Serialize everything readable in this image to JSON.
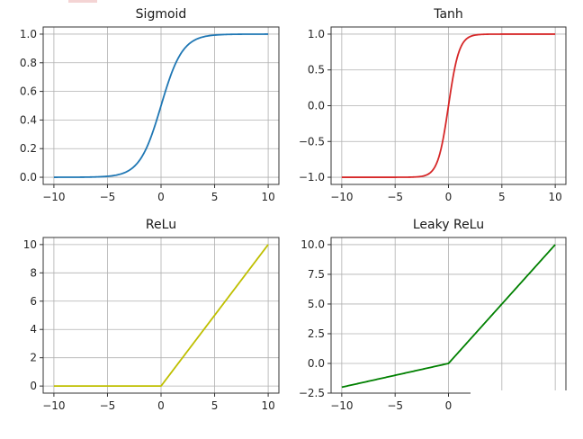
{
  "figure": {
    "layout": "2x2 subplot grid",
    "grid": true
  },
  "chart_data": [
    {
      "type": "line",
      "title": "Sigmoid",
      "color": "#1f77b4",
      "xlabel": "",
      "ylabel": "",
      "xlim": [
        -11,
        11
      ],
      "ylim": [
        -0.05,
        1.05
      ],
      "xticks": [
        -10,
        -5,
        0,
        5,
        10
      ],
      "xtick_labels": [
        "−10",
        "−5",
        "0",
        "5",
        "10"
      ],
      "yticks": [
        0.0,
        0.2,
        0.4,
        0.6,
        0.8,
        1.0
      ],
      "ytick_labels": [
        "0.0",
        "0.2",
        "0.4",
        "0.6",
        "0.8",
        "1.0"
      ],
      "x": [
        -10,
        -5,
        -3,
        -2,
        -1,
        0,
        1,
        2,
        3,
        5,
        10
      ],
      "y": [
        4.54e-05,
        0.0067,
        0.0474,
        0.1192,
        0.2689,
        0.5,
        0.7311,
        0.8808,
        0.9526,
        0.9933,
        0.99995
      ],
      "function": "1/(1+exp(-x))"
    },
    {
      "type": "line",
      "title": "Tanh",
      "color": "#d62728",
      "xlabel": "",
      "ylabel": "",
      "xlim": [
        -11,
        11
      ],
      "ylim": [
        -1.1,
        1.1
      ],
      "xticks": [
        -10,
        -5,
        0,
        5,
        10
      ],
      "xtick_labels": [
        "−10",
        "−5",
        "0",
        "5",
        "10"
      ],
      "yticks": [
        -1.0,
        -0.5,
        0.0,
        0.5,
        1.0
      ],
      "ytick_labels": [
        "−1.0",
        "−0.5",
        "0.0",
        "0.5",
        "1.0"
      ],
      "x": [
        -10,
        -3,
        -2,
        -1,
        -0.5,
        0,
        0.5,
        1,
        2,
        3,
        10
      ],
      "y": [
        -1.0,
        -0.995,
        -0.964,
        -0.762,
        -0.462,
        0.0,
        0.462,
        0.762,
        0.964,
        0.995,
        1.0
      ],
      "function": "tanh(x)"
    },
    {
      "type": "line",
      "title": "ReLu",
      "color": "#bfbf00",
      "xlabel": "",
      "ylabel": "",
      "xlim": [
        -11,
        11
      ],
      "ylim": [
        -0.5,
        10.5
      ],
      "xticks": [
        -10,
        -5,
        0,
        5,
        10
      ],
      "xtick_labels": [
        "−10",
        "−5",
        "0",
        "5",
        "10"
      ],
      "yticks": [
        0,
        2,
        4,
        6,
        8,
        10
      ],
      "ytick_labels": [
        "0",
        "2",
        "4",
        "6",
        "8",
        "10"
      ],
      "x": [
        -10,
        -5,
        0,
        5,
        10
      ],
      "y": [
        0,
        0,
        0,
        5,
        10
      ],
      "function": "max(0, x)"
    },
    {
      "type": "line",
      "title": "Leaky ReLu",
      "color": "#008000",
      "xlabel": "",
      "ylabel": "",
      "xlim": [
        -11,
        11
      ],
      "ylim": [
        -2.5,
        10.6
      ],
      "xticks": [
        -10,
        -5,
        0,
        5,
        10
      ],
      "xtick_labels": [
        "−10",
        "−5",
        "0",
        "",
        ""
      ],
      "yticks": [
        -2.5,
        0.0,
        2.5,
        5.0,
        7.5,
        10.0
      ],
      "ytick_labels": [
        "−2.5",
        "0.0",
        "2.5",
        "5.0",
        "7.5",
        "10.0"
      ],
      "x": [
        -10,
        -5,
        0,
        5,
        10
      ],
      "y": [
        -2,
        -1,
        0,
        5,
        10
      ],
      "function": "max(0.2x, x)"
    }
  ]
}
